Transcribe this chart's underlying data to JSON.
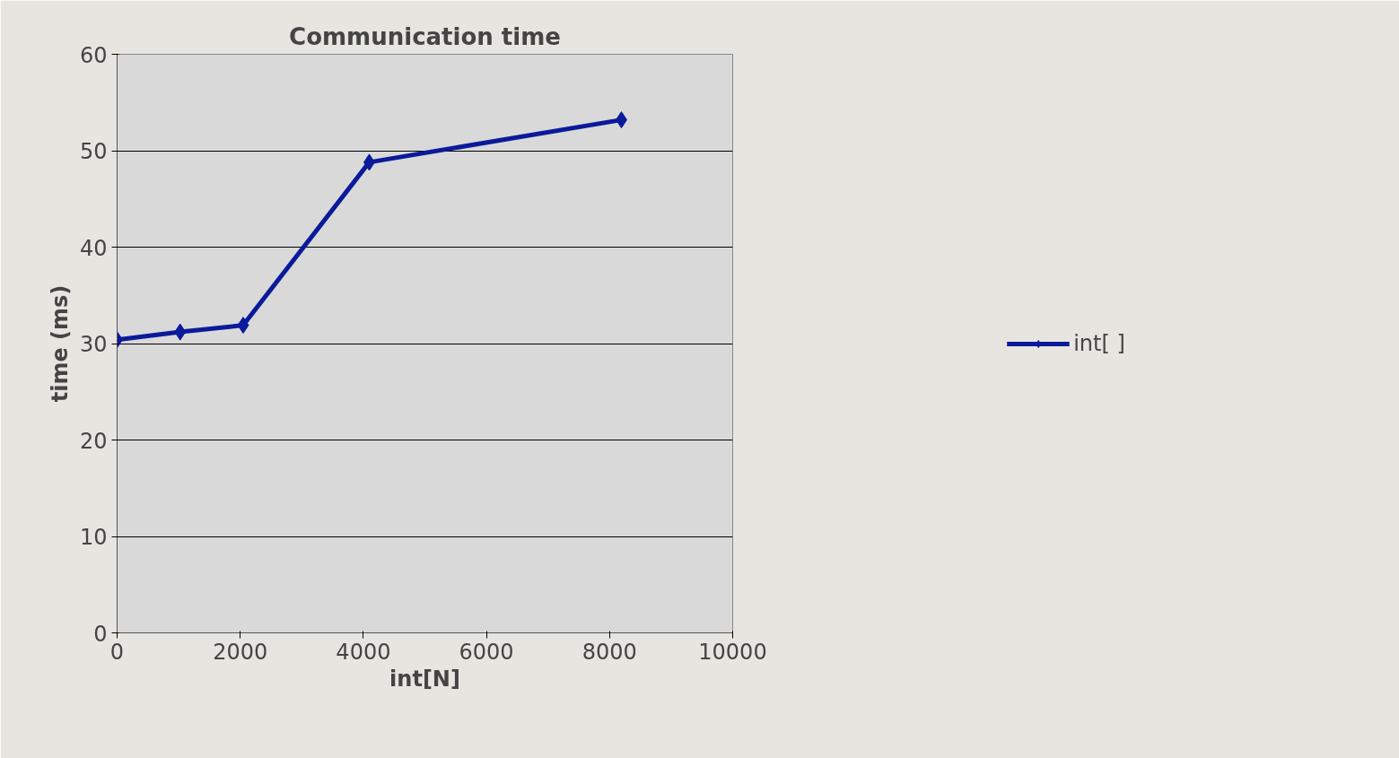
{
  "chart_data": {
    "type": "line",
    "title": "Communication time",
    "xlabel": "int[N]",
    "ylabel": "time (ms)",
    "x": [
      0,
      1024,
      2048,
      4096,
      8192
    ],
    "series": [
      {
        "name": "int[ ]",
        "color": "#0a1a9a",
        "values": [
          30.4,
          31.2,
          31.9,
          48.8,
          53.2
        ]
      }
    ],
    "xlim": [
      0,
      10000
    ],
    "xticks": [
      0,
      2000,
      4000,
      6000,
      8000,
      10000
    ],
    "ylim": [
      0,
      60
    ],
    "yticks": [
      0,
      10,
      20,
      30,
      40,
      50,
      60
    ],
    "grid": "y",
    "legend": "right",
    "marker": "diamond",
    "line_style": "solid"
  }
}
